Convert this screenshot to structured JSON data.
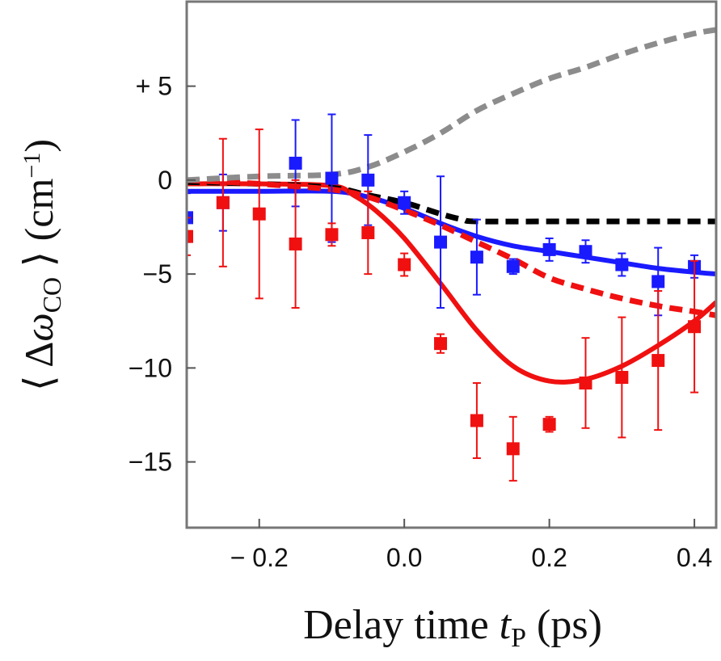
{
  "chart_data": {
    "type": "line",
    "xlabel": "Delay time t_P (ps)",
    "xlabel_parts": {
      "main": "Delay time ",
      "var": "t",
      "sub": "P",
      "unit": " (ps)"
    },
    "ylabel": "⟨ Δω_CO ⟩ (cm⁻¹)",
    "ylabel_parts": {
      "open": "⟨ Δ",
      "var": "ω",
      "sub": "CO",
      "close": " ⟩ (cm",
      "sup": "−1",
      "end": ")"
    },
    "xlim": [
      -0.3,
      0.43
    ],
    "ylim": [
      -18.5,
      9.5
    ],
    "x_ticks": [
      -0.2,
      0.0,
      0.2,
      0.4
    ],
    "x_tick_labels": [
      "− 0.2",
      "0.0",
      "0.2",
      "0.4"
    ],
    "y_ticks": [
      5,
      0,
      -5,
      -10,
      -15
    ],
    "y_tick_labels": [
      "+ 5",
      "0",
      "−5",
      "−10",
      "−15"
    ],
    "grid": false,
    "legend": "none",
    "colors": {
      "blue": "#1a1aff",
      "red": "#f01010",
      "black": "#000000",
      "gray": "#8c8c8c",
      "axis": "#777777"
    },
    "series": [
      {
        "style": "square-markers-errorbars",
        "color": "blue",
        "x": [
          -0.3,
          -0.25,
          -0.15,
          -0.1,
          -0.05,
          0.0,
          0.05,
          0.1,
          0.15,
          0.2,
          0.25,
          0.3,
          0.35,
          0.4
        ],
        "y": [
          -2.0,
          -1.2,
          0.9,
          0.1,
          0.0,
          -1.2,
          -3.3,
          -4.1,
          -4.6,
          -3.7,
          -3.8,
          -4.5,
          -5.4,
          -4.6
        ],
        "err": [
          1.3,
          1.5,
          2.3,
          3.4,
          2.4,
          0.6,
          3.5,
          2.0,
          0.4,
          0.6,
          0.6,
          0.6,
          1.8,
          0.6
        ]
      },
      {
        "style": "square-markers-errorbars",
        "color": "red",
        "x": [
          -0.3,
          -0.25,
          -0.2,
          -0.15,
          -0.1,
          -0.05,
          0.0,
          0.05,
          0.1,
          0.15,
          0.2,
          0.25,
          0.3,
          0.35,
          0.4
        ],
        "y": [
          -3.0,
          -1.2,
          -1.8,
          -3.4,
          -2.9,
          -2.8,
          -4.5,
          -8.7,
          -12.8,
          -14.3,
          -13.0,
          -10.8,
          -10.5,
          -9.6,
          -7.8
        ],
        "err": [
          1.0,
          3.4,
          4.5,
          3.4,
          0.6,
          2.2,
          0.6,
          0.5,
          2.0,
          1.7,
          0.4,
          2.4,
          3.2,
          3.7,
          3.5
        ]
      },
      {
        "style": "solid-line",
        "color": "blue",
        "x": [
          -0.3,
          -0.2,
          -0.1,
          -0.05,
          0.0,
          0.05,
          0.1,
          0.15,
          0.2,
          0.25,
          0.3,
          0.35,
          0.4,
          0.43
        ],
        "y": [
          -0.6,
          -0.6,
          -0.6,
          -0.9,
          -1.5,
          -2.3,
          -3.0,
          -3.5,
          -3.8,
          -4.1,
          -4.4,
          -4.7,
          -4.9,
          -5.0
        ]
      },
      {
        "style": "solid-line",
        "color": "red",
        "x": [
          -0.3,
          -0.2,
          -0.1,
          -0.07,
          -0.04,
          0.0,
          0.05,
          0.1,
          0.15,
          0.2,
          0.25,
          0.3,
          0.35,
          0.4,
          0.43
        ],
        "y": [
          -0.2,
          -0.2,
          -0.3,
          -0.8,
          -1.6,
          -3.1,
          -5.5,
          -8.0,
          -9.9,
          -10.7,
          -10.6,
          -9.9,
          -8.8,
          -7.5,
          -6.5
        ]
      },
      {
        "style": "dashed-line",
        "color": "black",
        "x": [
          -0.3,
          -0.2,
          -0.1,
          -0.05,
          0.0,
          0.05,
          0.08,
          0.1,
          0.2,
          0.3,
          0.43
        ],
        "y": [
          -0.1,
          -0.2,
          -0.4,
          -0.8,
          -1.2,
          -1.8,
          -2.1,
          -2.2,
          -2.2,
          -2.2,
          -2.2
        ]
      },
      {
        "style": "dashed-line",
        "color": "red",
        "x": [
          -0.3,
          -0.2,
          -0.1,
          -0.05,
          0.0,
          0.05,
          0.1,
          0.15,
          0.2,
          0.25,
          0.3,
          0.35,
          0.4,
          0.43
        ],
        "y": [
          0.0,
          -0.2,
          -0.5,
          -0.9,
          -1.6,
          -2.4,
          -3.3,
          -4.2,
          -5.2,
          -5.8,
          -6.3,
          -6.7,
          -7.0,
          -7.2
        ]
      },
      {
        "style": "dashed-line",
        "color": "gray",
        "x": [
          -0.3,
          -0.2,
          -0.1,
          -0.05,
          0.0,
          0.05,
          0.1,
          0.15,
          0.2,
          0.25,
          0.3,
          0.35,
          0.4,
          0.43
        ],
        "y": [
          0.0,
          0.2,
          0.3,
          0.7,
          1.5,
          2.5,
          3.7,
          4.6,
          5.4,
          6.0,
          6.7,
          7.3,
          7.8,
          8.0
        ]
      }
    ]
  }
}
